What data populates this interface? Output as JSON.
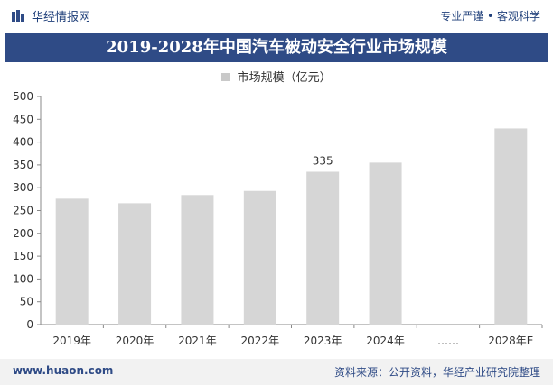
{
  "header": {
    "brand": "华经情报网",
    "slogan": "专业严谨 • 客观科学"
  },
  "colors": {
    "title_bg": "#2f4b86",
    "bar": "#d6d6d6",
    "accent_text": "#1f3f7a"
  },
  "chart_data": {
    "type": "bar",
    "title": "2019-2028年中国汽车被动安全行业市场规模",
    "legend": [
      "市场规模（亿元）"
    ],
    "legend_position": "top-center",
    "categories": [
      "2019年",
      "2020年",
      "2021年",
      "2022年",
      "2023年",
      "2024年",
      "……",
      "2028年E"
    ],
    "series": [
      {
        "name": "市场规模（亿元）",
        "values": [
          276,
          266,
          284,
          293,
          335,
          355,
          null,
          430
        ],
        "data_labels": [
          null,
          null,
          null,
          null,
          "335",
          null,
          null,
          null
        ]
      }
    ],
    "yticks": [
      "0",
      "50",
      "100",
      "150",
      "200",
      "250",
      "300",
      "350",
      "400",
      "450",
      "500"
    ],
    "ylim": [
      0,
      500
    ],
    "grid": false
  },
  "footer": {
    "url": "www.huaon.com",
    "source": "资料来源：公开资料，华经产业研究院整理"
  }
}
